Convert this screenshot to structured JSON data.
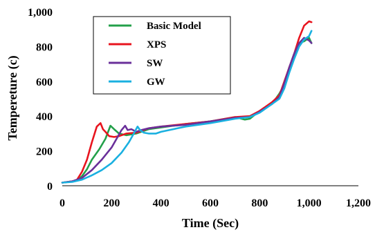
{
  "chart_data": {
    "type": "line",
    "title": "",
    "xlabel": "Time (Sec)",
    "ylabel": "Tempereture (c)",
    "xlim": [
      0,
      1200
    ],
    "ylim": [
      0,
      1000
    ],
    "xticks": [
      0,
      200,
      400,
      600,
      800,
      1000,
      1200
    ],
    "xtick_labels": [
      "0",
      "200",
      "400",
      "600",
      "800",
      "1,000",
      "1,200"
    ],
    "yticks": [
      0,
      200,
      400,
      600,
      800,
      1000
    ],
    "ytick_labels": [
      "0",
      "200",
      "400",
      "600",
      "800",
      "1,000"
    ],
    "grid": false,
    "legend_position": "top-left",
    "series": [
      {
        "name": "Basic Model",
        "color": "#23a04a",
        "x": [
          0,
          40,
          60,
          80,
          100,
          120,
          150,
          175,
          195,
          210,
          230,
          260,
          300,
          350,
          400,
          500,
          600,
          700,
          740,
          760,
          800,
          850,
          880,
          900,
          920,
          940,
          960,
          980,
          1000,
          1010
        ],
        "y": [
          18,
          25,
          30,
          55,
          95,
          150,
          210,
          270,
          345,
          325,
          300,
          290,
          300,
          325,
          335,
          355,
          370,
          395,
          380,
          385,
          430,
          470,
          530,
          580,
          680,
          740,
          820,
          830,
          850,
          820
        ]
      },
      {
        "name": "XPS",
        "color": "#e8141e",
        "x": [
          0,
          40,
          60,
          80,
          100,
          120,
          140,
          155,
          165,
          175,
          190,
          210,
          230,
          260,
          300,
          350,
          400,
          500,
          600,
          700,
          760,
          800,
          850,
          880,
          900,
          920,
          940,
          960,
          980,
          1000,
          1010
        ],
        "y": [
          18,
          25,
          35,
          80,
          150,
          250,
          340,
          360,
          325,
          310,
          285,
          280,
          285,
          300,
          305,
          330,
          340,
          355,
          370,
          395,
          400,
          430,
          480,
          520,
          600,
          680,
          760,
          850,
          920,
          945,
          940
        ]
      },
      {
        "name": "SW",
        "color": "#6a2f9a",
        "x": [
          0,
          40,
          80,
          120,
          160,
          200,
          220,
          240,
          255,
          265,
          280,
          300,
          320,
          350,
          400,
          500,
          600,
          700,
          760,
          800,
          850,
          880,
          900,
          920,
          940,
          960,
          980,
          1000,
          1010
        ],
        "y": [
          18,
          25,
          45,
          90,
          150,
          220,
          270,
          320,
          345,
          320,
          325,
          310,
          320,
          330,
          340,
          350,
          370,
          390,
          395,
          425,
          470,
          510,
          590,
          680,
          760,
          820,
          850,
          835,
          820
        ]
      },
      {
        "name": "GW",
        "color": "#1ab0e0",
        "x": [
          0,
          40,
          80,
          120,
          160,
          200,
          240,
          270,
          290,
          305,
          315,
          330,
          350,
          380,
          400,
          450,
          500,
          600,
          700,
          760,
          800,
          850,
          880,
          900,
          920,
          940,
          960,
          980,
          1000,
          1010
        ],
        "y": [
          18,
          22,
          35,
          60,
          90,
          130,
          190,
          250,
          300,
          340,
          320,
          305,
          300,
          300,
          310,
          325,
          340,
          360,
          385,
          395,
          420,
          470,
          500,
          560,
          650,
          730,
          800,
          840,
          860,
          890
        ]
      }
    ]
  }
}
